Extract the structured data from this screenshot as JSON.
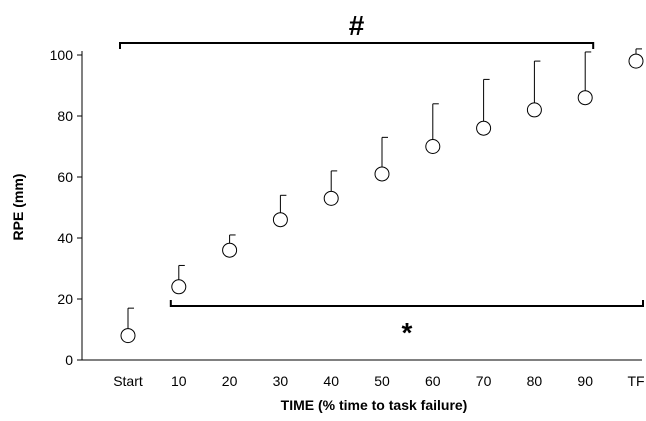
{
  "chart_data": {
    "type": "scatter",
    "title": "",
    "xlabel": "TIME (% time to task failure)",
    "ylabel": "RPE (mm)",
    "categories": [
      "Start",
      "10",
      "20",
      "30",
      "40",
      "50",
      "60",
      "70",
      "80",
      "90",
      "TF"
    ],
    "values": [
      8,
      24,
      36,
      46,
      53,
      61,
      70,
      76,
      82,
      86,
      98
    ],
    "error_upper": [
      9,
      7,
      5,
      8,
      9,
      12,
      14,
      16,
      16,
      15,
      4
    ],
    "ylim": [
      0,
      100
    ],
    "yticks": [
      0,
      20,
      40,
      60,
      80,
      100
    ],
    "grid": false,
    "legend": "none",
    "marker": "open-circle",
    "annotations": [
      {
        "symbol": "#",
        "placement": "above",
        "from_category": "Start",
        "to_category": "90"
      },
      {
        "symbol": "*",
        "placement": "below",
        "from_category": "10",
        "to_category": "TF"
      }
    ],
    "colors": {
      "marker_fill": "#ffffff",
      "marker_stroke": "#000000",
      "axis": "#000000",
      "error_bar": "#000000"
    }
  }
}
